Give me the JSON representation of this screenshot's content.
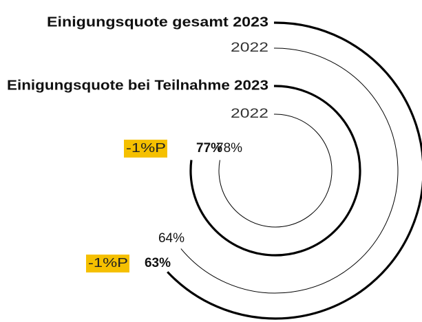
{
  "chart_data": {
    "type": "radial_bar",
    "ylim": [
      0,
      100
    ],
    "series": [
      {
        "name": "Einigungsquote gesamt 2023",
        "values": [
          63
        ],
        "value_labels": [
          "63%"
        ],
        "color": "#000000"
      },
      {
        "name": "2022",
        "values": [
          64
        ],
        "value_labels": [
          "64%"
        ],
        "color": "#000000"
      },
      {
        "name": "Einigungsquote bei Teilnahme 2023",
        "values": [
          77
        ],
        "value_labels": [
          "77%"
        ],
        "color": "#000000"
      },
      {
        "name": "2022",
        "values": [
          78
        ],
        "value_labels": [
          "78%"
        ],
        "color": "#000000"
      }
    ],
    "annotations": [
      "-1%P",
      "-1%P"
    ],
    "annotation_color": "#f5c000"
  }
}
